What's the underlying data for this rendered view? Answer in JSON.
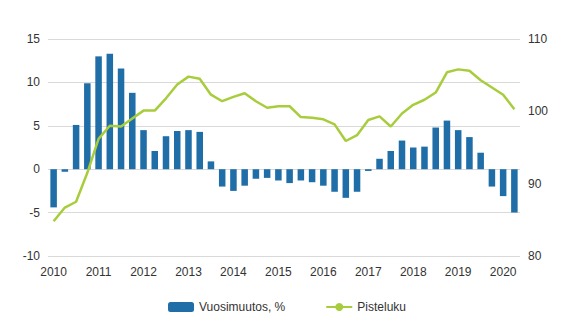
{
  "chart_data": {
    "type": "bar",
    "categories": [
      "2010",
      null,
      null,
      null,
      "2011",
      null,
      null,
      null,
      "2012",
      null,
      null,
      null,
      "2013",
      null,
      null,
      null,
      "2014",
      null,
      null,
      null,
      "2015",
      null,
      null,
      null,
      "2016",
      null,
      null,
      null,
      "2017",
      null,
      null,
      null,
      "2018",
      null,
      null,
      null,
      "2019",
      null,
      null,
      null,
      "2020",
      null
    ],
    "series": [
      {
        "name": "Vuosimuutos, %",
        "type": "bar",
        "color": "#1f6ea8",
        "values": [
          -4.4,
          -0.3,
          5.1,
          9.9,
          13.0,
          13.3,
          11.6,
          8.8,
          4.5,
          2.1,
          3.8,
          4.4,
          4.5,
          4.3,
          0.9,
          -2.0,
          -2.5,
          -1.9,
          -1.1,
          -1.0,
          -1.3,
          -1.6,
          -1.3,
          -1.5,
          -1.9,
          -2.6,
          -3.3,
          -2.6,
          -0.2,
          1.2,
          2.1,
          3.3,
          2.5,
          2.6,
          4.8,
          5.6,
          4.5,
          3.7,
          1.9,
          -2.0,
          -3.1,
          -5.0
        ]
      },
      {
        "name": "Pisteluku",
        "type": "line",
        "color": "#a8cd3c",
        "axis": "y2",
        "values": [
          84.8,
          86.7,
          87.5,
          91.5,
          96.2,
          98.0,
          97.9,
          99.0,
          100.1,
          100.1,
          101.8,
          103.7,
          104.8,
          104.5,
          102.3,
          101.4,
          102.0,
          102.5,
          101.4,
          100.5,
          100.7,
          100.7,
          99.2,
          99.1,
          98.9,
          98.2,
          95.9,
          96.7,
          98.8,
          99.3,
          97.9,
          99.7,
          100.9,
          101.6,
          102.6,
          105.4,
          105.8,
          105.6,
          104.3,
          103.3,
          102.3,
          100.3
        ]
      }
    ],
    "ylim": [
      -10,
      15
    ],
    "yticks": [
      -10,
      -5,
      0,
      5,
      10,
      15
    ],
    "y2lim": [
      80,
      110
    ],
    "y2ticks": [
      80,
      90,
      100,
      110
    ],
    "grid": true,
    "legend": "bottom"
  }
}
